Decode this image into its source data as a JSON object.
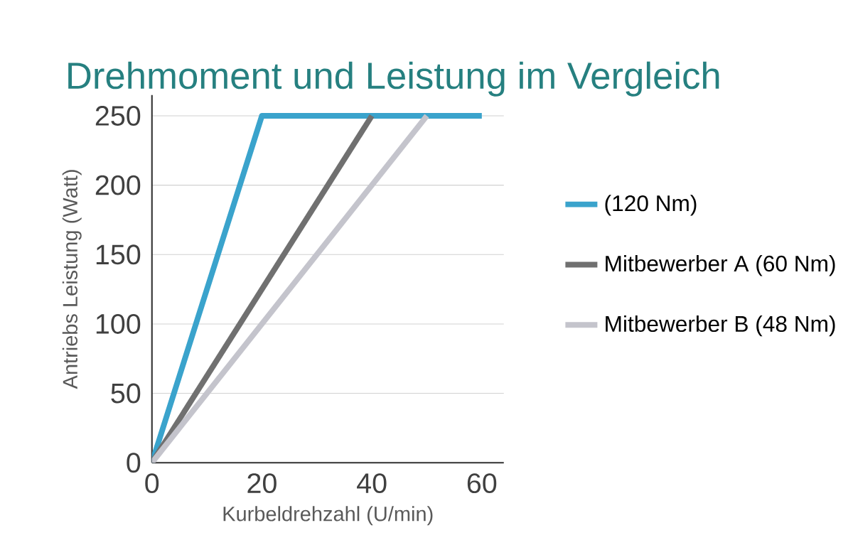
{
  "chart_data": {
    "type": "line",
    "title": "Drehmoment und Leistung im Vergleich",
    "xlabel": "Kurbeldrehzahl (U/min)",
    "ylabel": "Antriebs Leistung (Watt)",
    "xlim": [
      0,
      64
    ],
    "ylim": [
      0,
      265
    ],
    "xticks": [
      0,
      20,
      40,
      60
    ],
    "yticks": [
      0,
      50,
      100,
      150,
      200,
      250
    ],
    "grid": "y",
    "legend": "right",
    "marker": "none",
    "line_style": "solid",
    "series": [
      {
        "name": "(120 Nm)",
        "color": "#3aa3cc",
        "x": [
          0,
          20,
          60
        ],
        "values": [
          0,
          250,
          250
        ]
      },
      {
        "name": "Mitbewerber A (60 Nm)",
        "color": "#707070",
        "x": [
          0,
          40
        ],
        "values": [
          0,
          250
        ]
      },
      {
        "name": "Mitbewerber B (48 Nm)",
        "color": "#c4c4cc",
        "x": [
          0,
          50
        ],
        "values": [
          0,
          250
        ]
      }
    ]
  }
}
